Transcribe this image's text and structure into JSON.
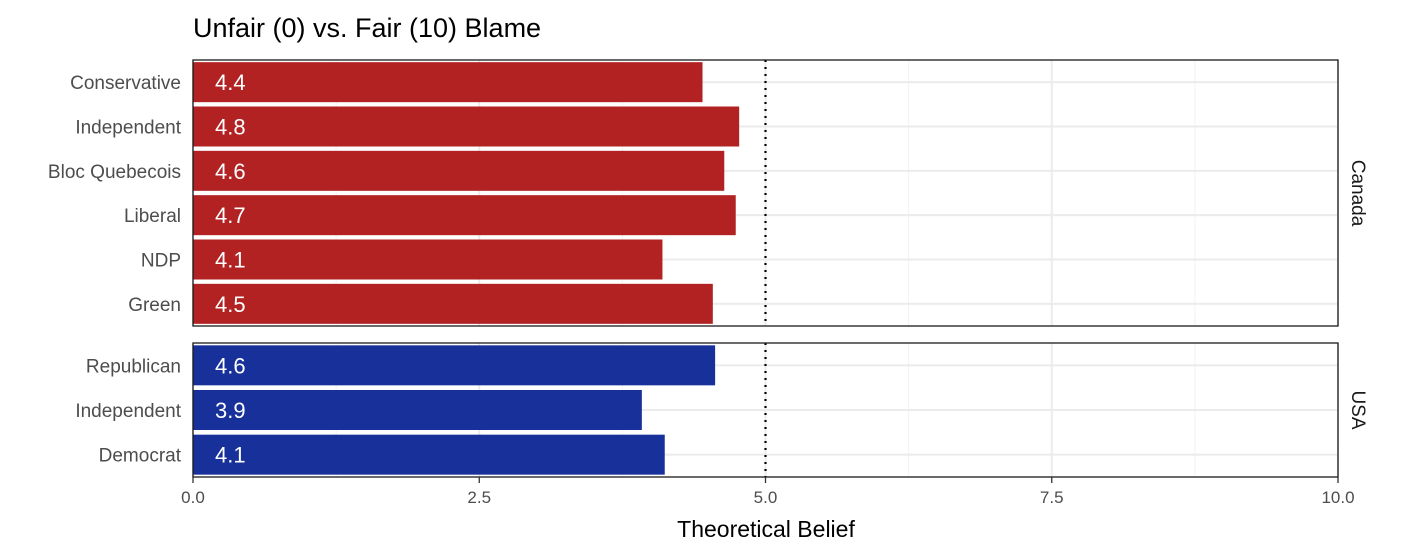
{
  "chart_data": {
    "type": "bar",
    "orientation": "horizontal",
    "title": "Unfair (0) vs. Fair (10) Blame",
    "xlabel": "Theoretical Belief",
    "ylabel": "",
    "xlim": [
      0,
      10
    ],
    "x_ticks": [
      "0.0",
      "2.5",
      "5.0",
      "7.5",
      "10.0"
    ],
    "x_tick_values": [
      0,
      2.5,
      5,
      7.5,
      10
    ],
    "reference_line": 5,
    "grid": true,
    "facets": [
      {
        "name": "Canada",
        "color": "#b22222",
        "categories": [
          "Conservative",
          "Independent",
          "Bloc Quebecois",
          "Liberal",
          "NDP",
          "Green"
        ],
        "values": [
          4.45,
          4.77,
          4.64,
          4.74,
          4.1,
          4.54
        ],
        "labels": [
          "4.4",
          "4.8",
          "4.6",
          "4.7",
          "4.1",
          "4.5"
        ]
      },
      {
        "name": "USA",
        "color": "#17309a",
        "categories": [
          "Republican",
          "Independent",
          "Democrat"
        ],
        "values": [
          4.56,
          3.92,
          4.12
        ],
        "labels": [
          "4.6",
          "3.9",
          "4.1"
        ]
      }
    ]
  }
}
